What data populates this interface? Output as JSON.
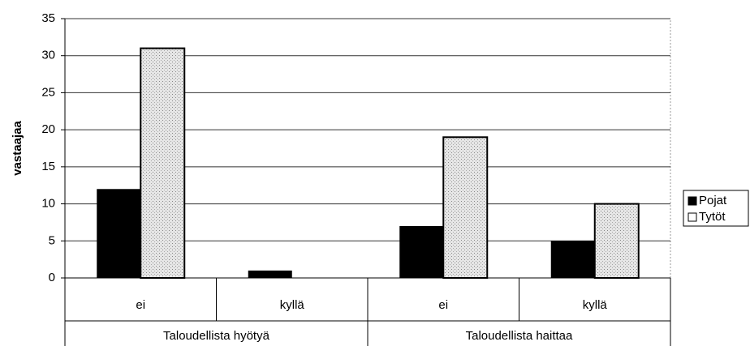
{
  "chart_data": {
    "type": "bar",
    "y_label": "vastaajaa",
    "categories": [
      "ei",
      "kyllä",
      "ei",
      "kyllä"
    ],
    "groups": [
      "Taloudellista hyötyä",
      "Taloudellista haittaa"
    ],
    "series": [
      {
        "name": "Pojat",
        "color": "#000000",
        "values": [
          12,
          1,
          7,
          5
        ]
      },
      {
        "name": "Tytöt",
        "color": "#d9d9d9",
        "values": [
          31,
          0,
          19,
          10
        ]
      }
    ],
    "ylim": [
      0,
      35
    ],
    "yticks": [
      0,
      5,
      10,
      15,
      20,
      25,
      30,
      35
    ],
    "grid": true,
    "legend": "right"
  }
}
